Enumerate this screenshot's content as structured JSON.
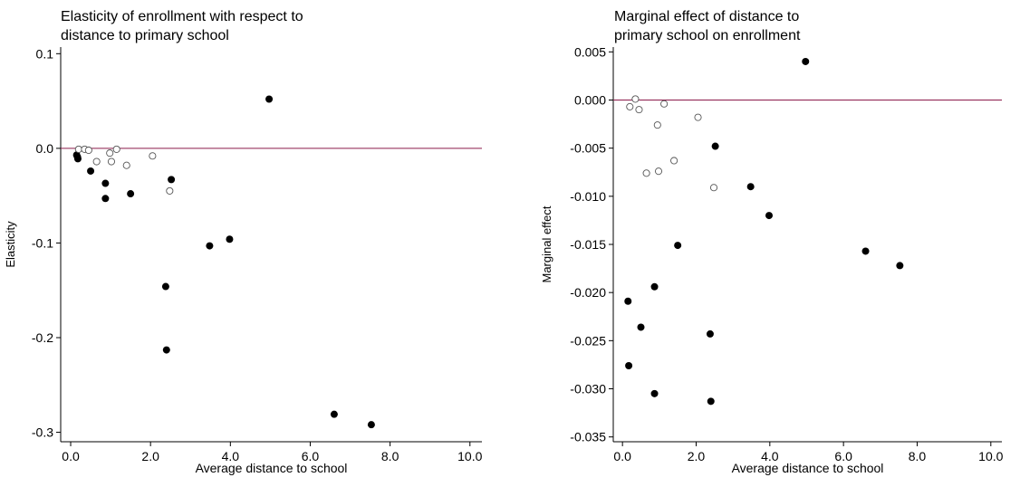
{
  "chart_data": [
    {
      "type": "scatter",
      "title_line1": "Elasticity of enrollment with respect to",
      "title_line2": "distance to primary school",
      "xlabel": "Average distance to school",
      "ylabel": "Elasticity",
      "xlim": [
        -0.25,
        10.3
      ],
      "ylim": [
        -0.31,
        0.107
      ],
      "xticks": [
        0,
        2,
        4,
        6,
        8,
        10
      ],
      "xtick_labels": [
        "0.0",
        "2.0",
        "4.0",
        "6.0",
        "8.0",
        "10.0"
      ],
      "yticks": [
        0.1,
        0,
        -0.1,
        -0.2,
        -0.3
      ],
      "ytick_labels": [
        "0.1",
        "0.0",
        "-0.1",
        "-0.2",
        "-0.3"
      ],
      "reference_line_y": 0,
      "grid": false,
      "colors": {
        "filled": "#000000",
        "hollow": "#555555",
        "refline": "#8b1a4a"
      },
      "series": [
        {
          "marker": "filled-circle",
          "x": [
            0.15,
            0.17,
            0.18,
            0.5,
            0.87,
            0.87,
            1.5,
            2.38,
            2.4,
            2.52,
            3.48,
            3.98,
            4.97,
            6.6,
            7.53
          ],
          "y": [
            -0.007,
            -0.009,
            -0.011,
            -0.024,
            -0.037,
            -0.053,
            -0.048,
            -0.146,
            -0.213,
            -0.033,
            -0.103,
            -0.096,
            0.052,
            -0.281,
            -0.292
          ]
        },
        {
          "marker": "hollow-circle",
          "x": [
            0.2,
            0.35,
            0.45,
            0.65,
            0.98,
            1.02,
            1.15,
            1.4,
            2.05,
            2.48
          ],
          "y": [
            -0.001,
            -0.001,
            -0.002,
            -0.014,
            -0.005,
            -0.014,
            -0.001,
            -0.018,
            -0.008,
            -0.045
          ]
        }
      ]
    },
    {
      "type": "scatter",
      "title_line1": "Marginal effect of distance to",
      "title_line2": "primary school on enrollment",
      "xlabel": "Average distance to school",
      "ylabel": "Marginal effect",
      "xlim": [
        -0.25,
        10.3
      ],
      "ylim": [
        -0.0355,
        0.0055
      ],
      "xticks": [
        0,
        2,
        4,
        6,
        8,
        10
      ],
      "xtick_labels": [
        "0.0",
        "2.0",
        "4.0",
        "6.0",
        "8.0",
        "10.0"
      ],
      "yticks": [
        0.005,
        0,
        -0.005,
        -0.01,
        -0.015,
        -0.02,
        -0.025,
        -0.03,
        -0.035
      ],
      "ytick_labels": [
        "0.005",
        "0.000",
        "-0.005",
        "-0.010",
        "-0.015",
        "-0.020",
        "-0.025",
        "-0.030",
        "-0.035"
      ],
      "reference_line_y": 0,
      "grid": false,
      "colors": {
        "filled": "#000000",
        "hollow": "#555555",
        "refline": "#8b1a4a"
      },
      "series": [
        {
          "marker": "filled-circle",
          "x": [
            0.15,
            0.17,
            0.5,
            0.87,
            0.87,
            1.5,
            2.38,
            2.4,
            2.52,
            3.48,
            3.98,
            4.97,
            6.6,
            7.53
          ],
          "y": [
            -0.0209,
            -0.0276,
            -0.0236,
            -0.0194,
            -0.0305,
            -0.0151,
            -0.0243,
            -0.0313,
            -0.0048,
            -0.009,
            -0.012,
            0.004,
            -0.0157,
            -0.0172
          ]
        },
        {
          "marker": "hollow-circle",
          "x": [
            0.2,
            0.35,
            0.45,
            0.65,
            0.95,
            0.98,
            1.13,
            1.4,
            2.05,
            2.48
          ],
          "y": [
            -0.0007,
            0.0001,
            -0.001,
            -0.0076,
            -0.0026,
            -0.0074,
            -0.0004,
            -0.0063,
            -0.0018,
            -0.0091
          ]
        }
      ]
    }
  ]
}
